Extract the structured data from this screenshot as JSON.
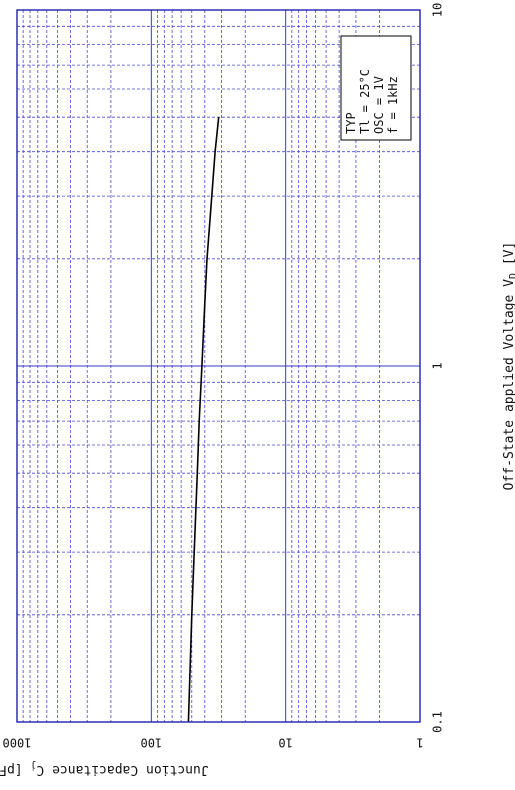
{
  "chart_data": {
    "type": "line",
    "title": "",
    "xlabel": "Off-State  applied  Voltage  V",
    "xlabel_sub": "D",
    "xlabel_unit": "[V]",
    "ylabel": "Junction Capacitance  C",
    "ylabel_sub": "j",
    "ylabel_unit": "[pF]",
    "xscale": "log",
    "yscale": "log",
    "xlim": [
      0.1,
      10
    ],
    "ylim": [
      1,
      1000
    ],
    "x_ticks": [
      {
        "value": 0.1,
        "label": "0.1"
      },
      {
        "value": 1,
        "label": "1"
      },
      {
        "value": 10,
        "label": "10"
      }
    ],
    "y_ticks": [
      {
        "value": 1,
        "label": "1"
      },
      {
        "value": 10,
        "label": "10"
      },
      {
        "value": 100,
        "label": "100"
      },
      {
        "value": 1000,
        "label": "1000"
      }
    ],
    "grid": true,
    "orientation": "rotated 90 degrees (portrait page)",
    "series": [
      {
        "x": [
          0.1,
          0.2,
          0.3,
          0.5,
          0.7,
          1.0,
          1.5,
          2.0,
          3.0,
          4.0,
          5.0
        ],
        "y": [
          53,
          50,
          48,
          45.5,
          44,
          42,
          40,
          38.5,
          35.5,
          33.5,
          31.5
        ],
        "color": "#000000"
      }
    ],
    "legend_box": {
      "placement": "top-right (in rotated view)",
      "lines": [
        "TYP",
        "Tl = 25°C",
        "OSC = 1V",
        "f = 1kHz"
      ]
    }
  },
  "colors": {
    "grid_major": "#3a3ac8",
    "grid_minor": "#4848d0",
    "frame": "#2020b0",
    "curve": "#000000"
  }
}
